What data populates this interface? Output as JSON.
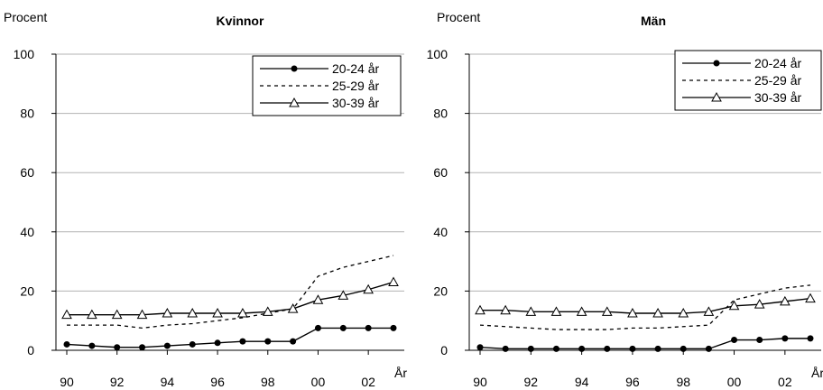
{
  "chart_data": [
    {
      "type": "line",
      "title": "Kvinnor",
      "ylabel": "Procent",
      "xlabel": "År",
      "ylim": [
        0,
        100
      ],
      "yticks": [
        0,
        20,
        40,
        60,
        80,
        100
      ],
      "xlim": [
        90,
        103
      ],
      "x": [
        90,
        91,
        92,
        93,
        94,
        95,
        96,
        97,
        98,
        99,
        100,
        101,
        102,
        103
      ],
      "xtick_labels": [
        "90",
        "92",
        "94",
        "96",
        "98",
        "00",
        "02"
      ],
      "grid": true,
      "legend": "top-right",
      "series": [
        {
          "name": "20-24 år",
          "style": "solid-dot",
          "values": [
            2,
            1.5,
            1,
            1,
            1.5,
            2,
            2.5,
            3,
            3,
            3,
            7.5,
            7.5,
            7.5,
            7.5
          ]
        },
        {
          "name": "25-29 år",
          "style": "dashed",
          "values": [
            8.5,
            8.5,
            8.5,
            7.5,
            8.5,
            9,
            10,
            11,
            12.5,
            14,
            25,
            28,
            30,
            32
          ]
        },
        {
          "name": "30-39 år",
          "style": "solid-triangle",
          "values": [
            12,
            12,
            12,
            12,
            12.5,
            12.5,
            12.5,
            12.5,
            13,
            14,
            17,
            18.5,
            20.5,
            23
          ]
        }
      ]
    },
    {
      "type": "line",
      "title": "Män",
      "ylabel": "Procent",
      "xlabel": "År",
      "ylim": [
        0,
        100
      ],
      "yticks": [
        0,
        20,
        40,
        60,
        80,
        100
      ],
      "xlim": [
        90,
        103
      ],
      "x": [
        90,
        91,
        92,
        93,
        94,
        95,
        96,
        97,
        98,
        99,
        100,
        101,
        102,
        103
      ],
      "xtick_labels": [
        "90",
        "92",
        "94",
        "96",
        "98",
        "00",
        "02"
      ],
      "grid": true,
      "legend": "top-right",
      "series": [
        {
          "name": "20-24 år",
          "style": "solid-dot",
          "values": [
            1,
            0.5,
            0.5,
            0.5,
            0.5,
            0.5,
            0.5,
            0.5,
            0.5,
            0.5,
            3.5,
            3.5,
            4,
            4
          ]
        },
        {
          "name": "25-29 år",
          "style": "dashed",
          "values": [
            8.5,
            8,
            7.5,
            7,
            7,
            7,
            7.5,
            7.5,
            8,
            8.5,
            17,
            19,
            21,
            22
          ]
        },
        {
          "name": "30-39 år",
          "style": "solid-triangle",
          "values": [
            13.5,
            13.5,
            13,
            13,
            13,
            13,
            12.5,
            12.5,
            12.5,
            13,
            15,
            15.5,
            16.5,
            17.5
          ]
        }
      ]
    }
  ]
}
